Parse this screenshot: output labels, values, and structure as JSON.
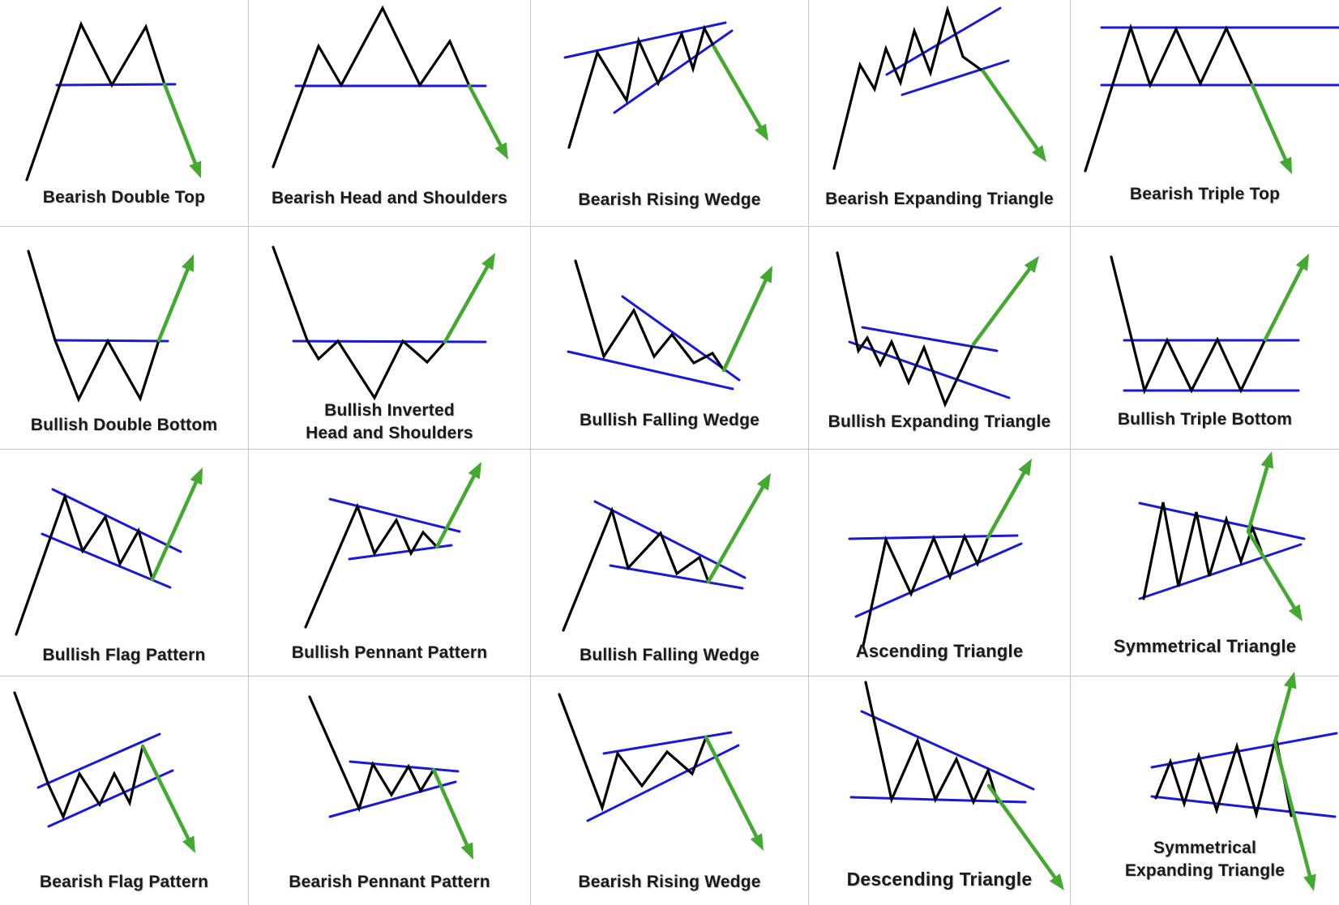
{
  "colors": {
    "price": "#000000",
    "trendline": "#1a1ad6",
    "breakout": "#44a832",
    "grid_line": "#c8c8c8"
  },
  "patterns": [
    {
      "id": "bearish-double-top",
      "label": [
        "Bearish Double Top"
      ],
      "breakout": "down"
    },
    {
      "id": "bearish-head-and-shoulders",
      "label": [
        "Bearish Head and Shoulders"
      ],
      "breakout": "down"
    },
    {
      "id": "bearish-rising-wedge-1",
      "label": [
        "Bearish Rising Wedge"
      ],
      "breakout": "down"
    },
    {
      "id": "bearish-expanding-triangle",
      "label": [
        "Bearish Expanding Triangle"
      ],
      "breakout": "down"
    },
    {
      "id": "bearish-triple-top",
      "label": [
        "Bearish Triple Top"
      ],
      "breakout": "down"
    },
    {
      "id": "bullish-double-bottom",
      "label": [
        "Bullish Double Bottom"
      ],
      "breakout": "up"
    },
    {
      "id": "bullish-inverted-head-and-shoulders",
      "label": [
        "Bullish Inverted",
        "Head and Shoulders"
      ],
      "breakout": "up"
    },
    {
      "id": "bullish-falling-wedge-1",
      "label": [
        "Bullish Falling Wedge"
      ],
      "breakout": "up"
    },
    {
      "id": "bullish-expanding-triangle",
      "label": [
        "Bullish Expanding Triangle"
      ],
      "breakout": "up"
    },
    {
      "id": "bullish-triple-bottom",
      "label": [
        "Bullish Triple Bottom"
      ],
      "breakout": "up"
    },
    {
      "id": "bullish-flag-pattern",
      "label": [
        "Bullish Flag Pattern"
      ],
      "breakout": "up"
    },
    {
      "id": "bullish-pennant-pattern",
      "label": [
        "Bullish Pennant Pattern"
      ],
      "breakout": "up"
    },
    {
      "id": "bullish-falling-wedge-2",
      "label": [
        "Bullish Falling Wedge"
      ],
      "breakout": "up"
    },
    {
      "id": "ascending-triangle",
      "label": [
        "Ascending Triangle"
      ],
      "breakout": "up"
    },
    {
      "id": "symmetrical-triangle",
      "label": [
        "Symmetrical Triangle"
      ],
      "breakout": "up and down"
    },
    {
      "id": "bearish-flag-pattern",
      "label": [
        "Bearish Flag Pattern"
      ],
      "breakout": "down"
    },
    {
      "id": "bearish-pennant-pattern",
      "label": [
        "Bearish Pennant Pattern"
      ],
      "breakout": "down"
    },
    {
      "id": "bearish-rising-wedge-2",
      "label": [
        "Bearish Rising Wedge"
      ],
      "breakout": "down"
    },
    {
      "id": "descending-triangle",
      "label": [
        "Descending Triangle"
      ],
      "breakout": "down"
    },
    {
      "id": "symmetrical-expanding-triangle",
      "label": [
        "Symmetrical",
        "Expanding Triangle"
      ],
      "breakout": "up and down"
    }
  ]
}
